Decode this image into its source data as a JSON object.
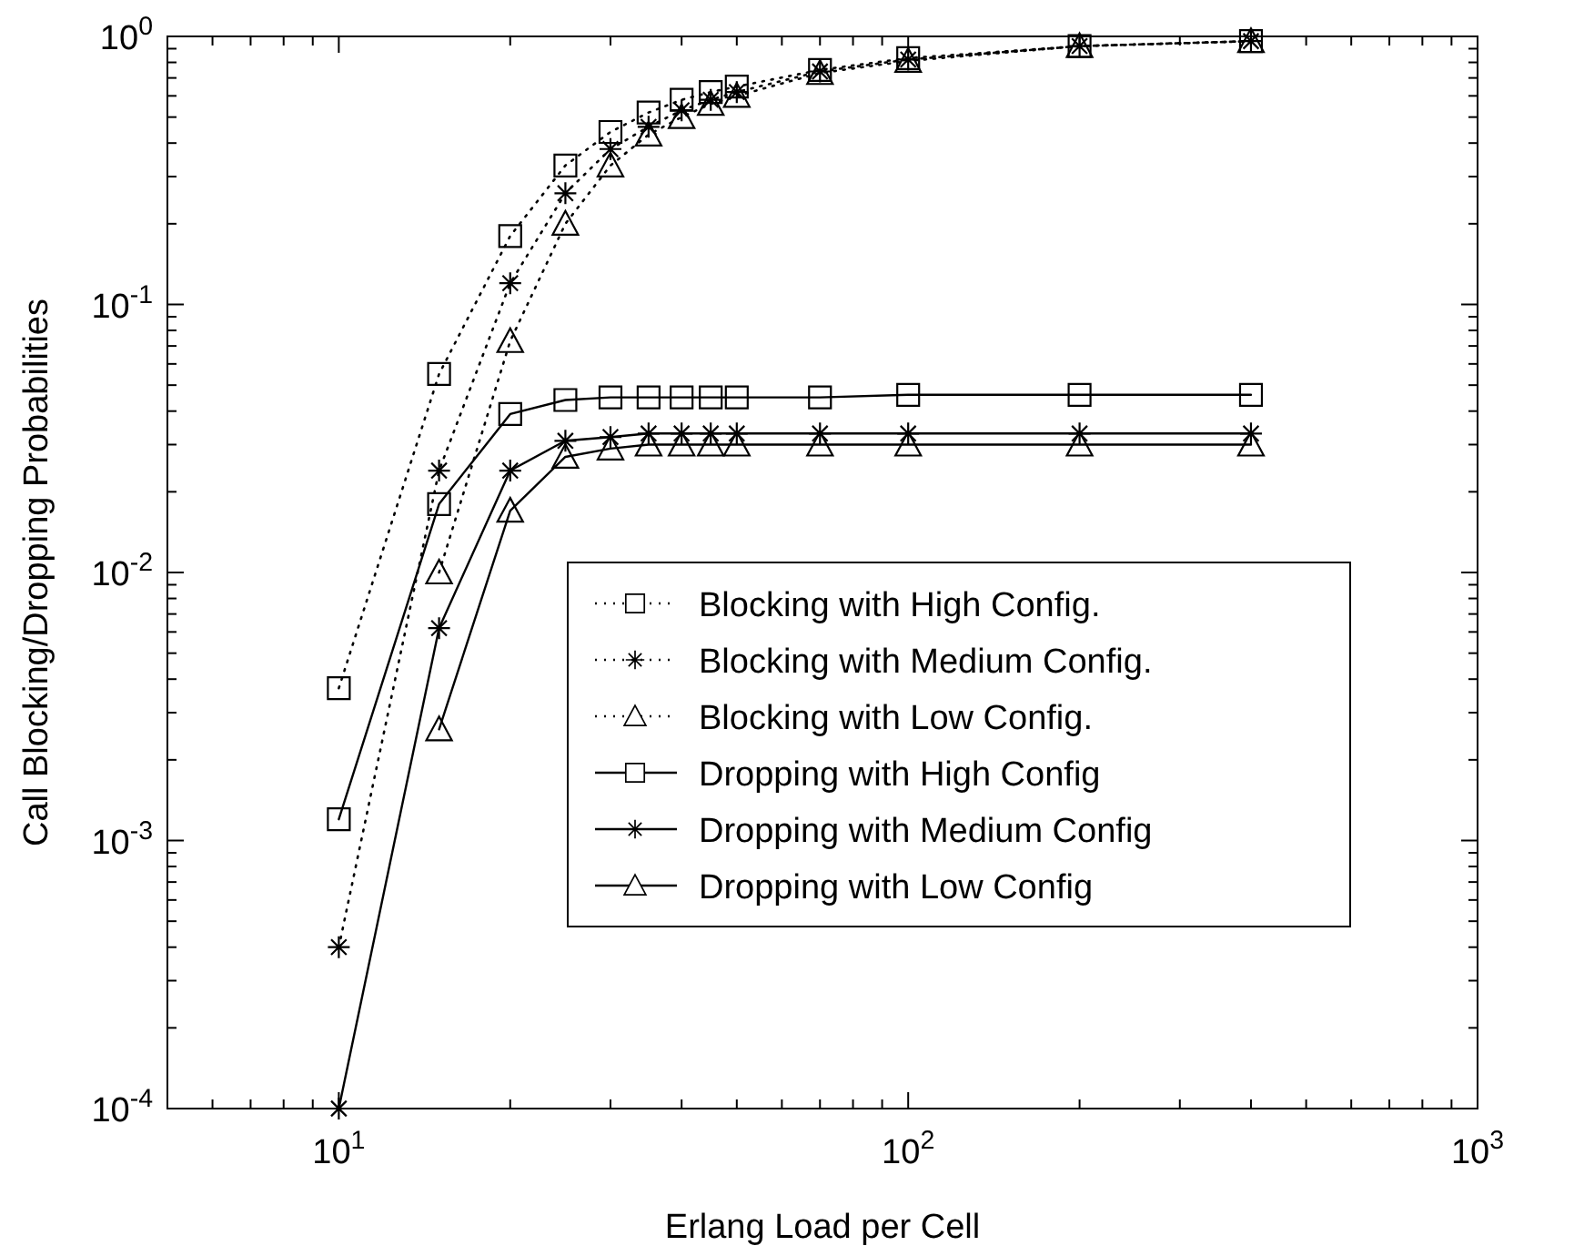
{
  "chart_data": {
    "type": "line",
    "xlabel": "Erlang Load per Cell",
    "ylabel": "Call Blocking/Dropping Probabilities",
    "x": [
      10,
      15,
      20,
      25,
      30,
      35,
      40,
      45,
      50,
      70,
      100,
      200,
      400
    ],
    "series": [
      {
        "name": "Blocking with High Config.",
        "color": "#000000",
        "marker": "square",
        "line_style": "dotted",
        "values": [
          0.0037,
          0.055,
          0.18,
          0.33,
          0.44,
          0.52,
          0.58,
          0.62,
          0.65,
          0.75,
          0.83,
          0.92,
          0.96
        ]
      },
      {
        "name": "Blocking with Medium Config.",
        "color": "#000000",
        "marker": "cross",
        "line_style": "dotted",
        "values": [
          0.0004,
          0.024,
          0.12,
          0.26,
          0.38,
          0.46,
          0.53,
          0.58,
          0.62,
          0.74,
          0.82,
          0.92,
          0.96
        ]
      },
      {
        "name": "Blocking with Low Config.",
        "color": "#000000",
        "marker": "triangle",
        "line_style": "dotted",
        "values": [
          null,
          0.01,
          0.073,
          0.2,
          0.33,
          0.43,
          0.5,
          0.56,
          0.6,
          0.73,
          0.81,
          0.92,
          0.96
        ]
      },
      {
        "name": "Dropping with High Config",
        "color": "#000000",
        "marker": "square",
        "line_style": "solid",
        "values": [
          0.0012,
          0.018,
          0.039,
          0.044,
          0.045,
          0.045,
          0.045,
          0.045,
          0.045,
          0.045,
          0.046,
          0.046,
          0.046
        ]
      },
      {
        "name": "Dropping with Medium Config",
        "color": "#000000",
        "marker": "cross",
        "line_style": "solid",
        "values": [
          0.0001,
          0.0062,
          0.024,
          0.031,
          0.032,
          0.033,
          0.033,
          0.033,
          0.033,
          0.033,
          0.033,
          0.033,
          0.033
        ]
      },
      {
        "name": "Dropping with Low Config",
        "color": "#000000",
        "marker": "triangle",
        "line_style": "solid",
        "values": [
          null,
          0.0026,
          0.017,
          0.027,
          0.029,
          0.03,
          0.03,
          0.03,
          0.03,
          0.03,
          0.03,
          0.03,
          0.03
        ]
      }
    ],
    "log": "xy",
    "xlim": [
      5,
      1000
    ],
    "xticks": [
      {
        "value": 10,
        "label": "10$^{1}$"
      },
      {
        "value": 100,
        "label": "10$^{2}$"
      },
      {
        "value": 1000,
        "label": "10$^{3}$"
      }
    ],
    "ylim": [
      0.0001,
      1
    ],
    "yticks": [
      {
        "value": 0.0001,
        "label": "10$^{-4}$"
      },
      {
        "value": 0.001,
        "label": "10$^{-3}$"
      },
      {
        "value": 0.01,
        "label": "10$^{-2}$"
      },
      {
        "value": 0.1,
        "label": "10$^{-1}$"
      },
      {
        "value": 1,
        "label": "10$^{0}$"
      }
    ],
    "legend": "bottom right"
  }
}
